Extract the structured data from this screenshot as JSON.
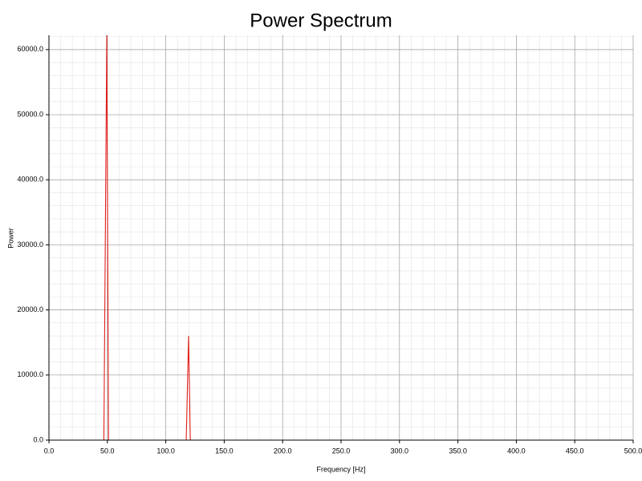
{
  "chart_data": {
    "type": "line",
    "title": "Power Spectrum",
    "x_label": "Frequency [Hz]",
    "y_label": "Power",
    "x": [
      0,
      47,
      49.5,
      51,
      117.5,
      119.5,
      121,
      500
    ],
    "series": [
      {
        "name": "Power",
        "color": "#e0201a",
        "values": [
          0,
          0,
          62500,
          0,
          0,
          16000,
          0,
          0
        ]
      }
    ],
    "xlim": [
      0,
      500
    ],
    "ylim": [
      0,
      62200
    ],
    "xticks": [
      {
        "value": 0,
        "label": "0.0"
      },
      {
        "value": 50,
        "label": "50.0"
      },
      {
        "value": 100,
        "label": "100.0"
      },
      {
        "value": 150,
        "label": "150.0"
      },
      {
        "value": 200,
        "label": "200.0"
      },
      {
        "value": 250,
        "label": "250.0"
      },
      {
        "value": 300,
        "label": "300.0"
      },
      {
        "value": 350,
        "label": "350.0"
      },
      {
        "value": 400,
        "label": "400.0"
      },
      {
        "value": 450,
        "label": "450.0"
      },
      {
        "value": 500,
        "label": "500.0"
      }
    ],
    "yticks": [
      {
        "value": 0,
        "label": "0.0"
      },
      {
        "value": 10000,
        "label": "10000.0"
      },
      {
        "value": 20000,
        "label": "20000.0"
      },
      {
        "value": 30000,
        "label": "30000.0"
      },
      {
        "value": 40000,
        "label": "40000.0"
      },
      {
        "value": 50000,
        "label": "50000.0"
      },
      {
        "value": 60000,
        "label": "60000.0"
      }
    ],
    "grid": true
  }
}
